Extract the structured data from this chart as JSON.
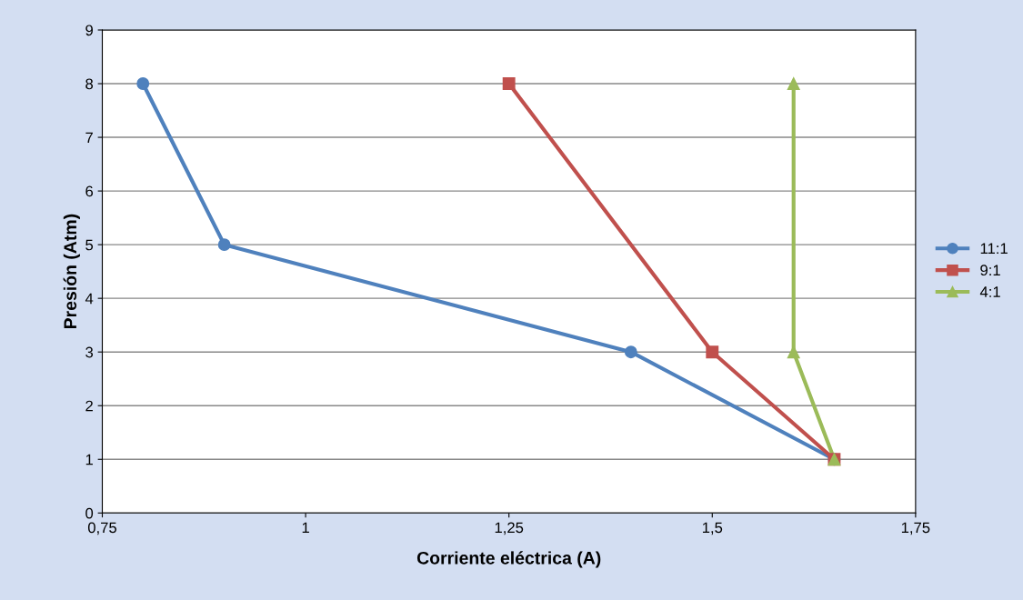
{
  "chart_data": {
    "type": "line",
    "xlabel": "Corriente eléctrica (A)",
    "ylabel": "Presión (Atm)",
    "series": [
      {
        "name": "11:1",
        "color": "#4f81bd",
        "marker": "circle",
        "x": [
          0.8,
          0.9,
          1.4,
          1.65
        ],
        "values": [
          8,
          5,
          3,
          1
        ]
      },
      {
        "name": "9:1",
        "color": "#c0504d",
        "marker": "square",
        "x": [
          1.25,
          1.5,
          1.65
        ],
        "values": [
          8,
          3,
          1
        ]
      },
      {
        "name": "4:1",
        "color": "#9bbb59",
        "marker": "triangle",
        "x": [
          1.6,
          1.6,
          1.65
        ],
        "values": [
          8,
          3,
          1
        ]
      }
    ],
    "xlim": [
      0.75,
      1.75
    ],
    "xticks": [
      {
        "value": 0.75,
        "label": "0,75"
      },
      1,
      {
        "value": 1.25,
        "label": "1,25"
      },
      {
        "value": 1.5,
        "label": "1,5"
      },
      {
        "value": 1.75,
        "label": "1,75"
      }
    ],
    "ylim": [
      0,
      9
    ],
    "yticks": [
      0,
      1,
      2,
      3,
      4,
      5,
      6,
      7,
      8,
      9
    ],
    "grid": "y",
    "legend": "right",
    "line_style": "solid"
  }
}
